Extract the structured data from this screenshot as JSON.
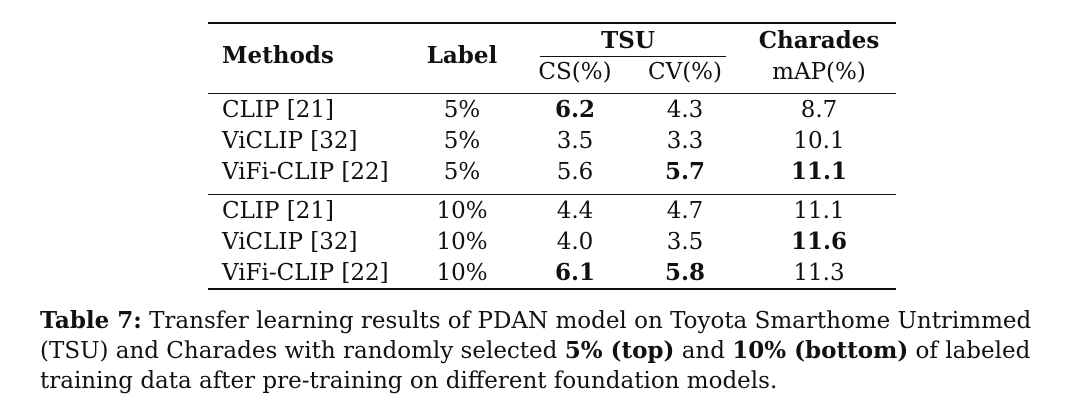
{
  "table": {
    "header": {
      "methods": "Methods",
      "label": "Label",
      "tsu": "TSU",
      "charades": "Charades",
      "cs": "CS(%)",
      "cv": "CV(%)",
      "map": "mAP(%)"
    },
    "rows": [
      {
        "method": "CLIP [21]",
        "label": "5%",
        "cs": "6.2",
        "cv": "4.3",
        "map": "8.7",
        "bold": [
          "cs"
        ]
      },
      {
        "method": "ViCLIP [32]",
        "label": "5%",
        "cs": "3.5",
        "cv": "3.3",
        "map": "10.1",
        "bold": []
      },
      {
        "method": "ViFi-CLIP [22]",
        "label": "5%",
        "cs": "5.6",
        "cv": "5.7",
        "map": "11.1",
        "bold": [
          "cv",
          "map"
        ]
      },
      {
        "method": "CLIP [21]",
        "label": "10%",
        "cs": "4.4",
        "cv": "4.7",
        "map": "11.1",
        "bold": []
      },
      {
        "method": "ViCLIP [32]",
        "label": "10%",
        "cs": "4.0",
        "cv": "3.5",
        "map": "11.6",
        "bold": [
          "map"
        ]
      },
      {
        "method": "ViFi-CLIP [22]",
        "label": "10%",
        "cs": "6.1",
        "cv": "5.8",
        "map": "11.3",
        "bold": [
          "cs",
          "cv"
        ]
      }
    ]
  },
  "caption": {
    "label": "Table 7:",
    "text1": " Transfer learning results of PDAN model on Toyota Smarthome Untrimmed (TSU) and Charades with randomly selected ",
    "bold1": "5% (top)",
    "text2": " and ",
    "bold2": "10% (bottom)",
    "text3": " of labeled training data after pre-training on different foundation models."
  }
}
